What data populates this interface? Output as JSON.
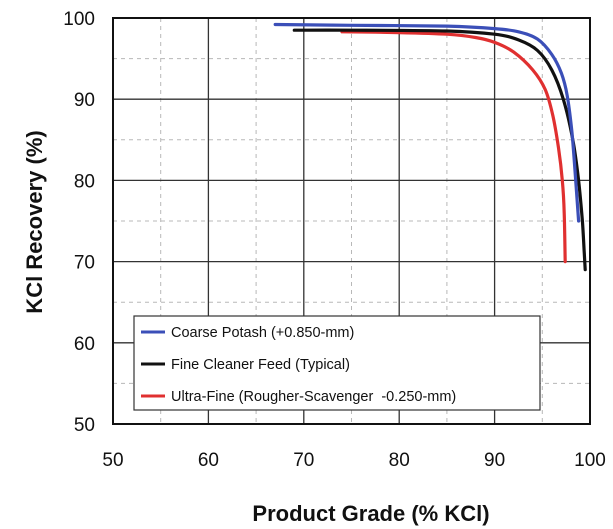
{
  "chart_data": {
    "type": "line",
    "title": "",
    "xlabel": "Product Grade (% KCl)",
    "ylabel": "KCl Recovery (%)",
    "xlim": [
      50,
      100
    ],
    "ylim": [
      50,
      100
    ],
    "x_ticks": [
      50,
      60,
      70,
      80,
      90,
      100
    ],
    "y_ticks": [
      50,
      60,
      70,
      80,
      90,
      100
    ],
    "x_tick_labels": [
      "50",
      "60",
      "70",
      "80",
      "90",
      "100"
    ],
    "y_tick_labels": [
      "50",
      "60",
      "70",
      "80",
      "90",
      "100"
    ],
    "grid": {
      "major": true,
      "minor_dashed": true
    },
    "legend_position": "bottom-left",
    "series": [
      {
        "name": "Coarse Potash (+0.850-mm)",
        "color": "#3b4fb8",
        "points": [
          [
            67,
            99.2
          ],
          [
            75,
            99.1
          ],
          [
            85,
            99.0
          ],
          [
            90,
            98.7
          ],
          [
            92.5,
            98.3
          ],
          [
            94.5,
            97.4
          ],
          [
            96,
            95.5
          ],
          [
            97,
            93.2
          ],
          [
            97.6,
            90.5
          ],
          [
            98.1,
            86
          ],
          [
            98.5,
            80
          ],
          [
            98.8,
            75
          ]
        ]
      },
      {
        "name": "Fine Cleaner Feed (Typical)",
        "color": "#111111",
        "points": [
          [
            69,
            98.5
          ],
          [
            75,
            98.5
          ],
          [
            85,
            98.4
          ],
          [
            90,
            98.0
          ],
          [
            92.5,
            97.3
          ],
          [
            94.5,
            96.0
          ],
          [
            96,
            93.6
          ],
          [
            97.2,
            90
          ],
          [
            98.2,
            85
          ],
          [
            98.8,
            80
          ],
          [
            99.2,
            75
          ],
          [
            99.4,
            71
          ],
          [
            99.5,
            69
          ]
        ]
      },
      {
        "name": "Ultra-Fine (Rougher-Scavenger  -0.250-mm)",
        "color": "#e03030",
        "points": [
          [
            74,
            98.3
          ],
          [
            80,
            98.2
          ],
          [
            85,
            98.0
          ],
          [
            88,
            97.6
          ],
          [
            90,
            97.0
          ],
          [
            92,
            95.8
          ],
          [
            94,
            93.6
          ],
          [
            95.3,
            91.2
          ],
          [
            96.1,
            88
          ],
          [
            96.7,
            84
          ],
          [
            97.1,
            80
          ],
          [
            97.3,
            76
          ],
          [
            97.4,
            70
          ]
        ]
      }
    ]
  }
}
